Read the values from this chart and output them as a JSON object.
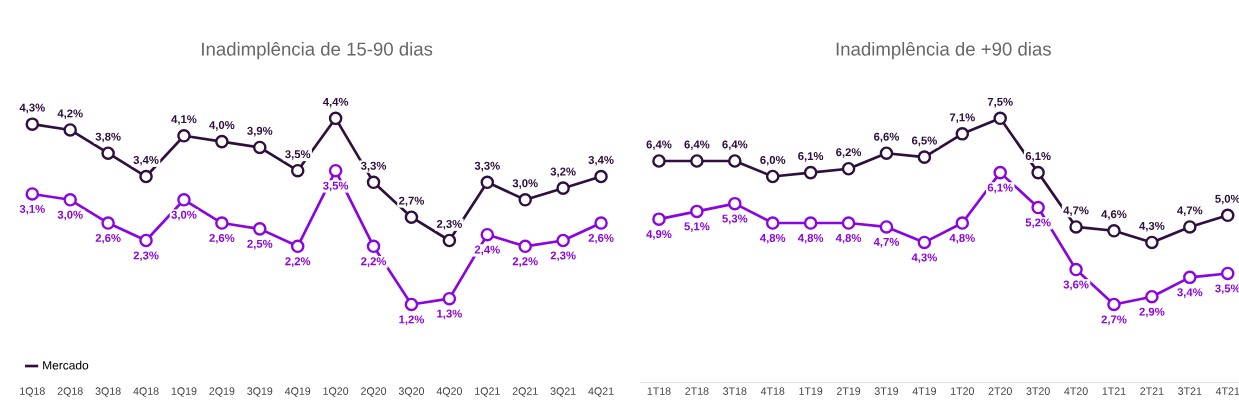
{
  "chart_data": [
    {
      "type": "line",
      "title": "Inadimplência de 15-90 dias",
      "categories": [
        "1Q18",
        "2Q18",
        "3Q18",
        "4Q18",
        "1Q19",
        "2Q19",
        "3Q19",
        "4Q19",
        "1Q20",
        "2Q20",
        "3Q20",
        "4Q20",
        "1Q21",
        "2Q21",
        "3Q21",
        "4Q21"
      ],
      "marker": "circle",
      "legend": "bottom left",
      "series": [
        {
          "name": "Mercado",
          "color": "#2e0f3d",
          "values": [
            4.3,
            4.2,
            3.8,
            3.4,
            4.1,
            4.0,
            3.9,
            3.5,
            4.4,
            3.3,
            2.7,
            2.3,
            3.3,
            3.0,
            3.2,
            3.4
          ],
          "value_labels": [
            "4,3%",
            "4,2%",
            "3,8%",
            "3,4%",
            "4,1%",
            "4,0%",
            "3,9%",
            "3,5%",
            "4,4%",
            "3,3%",
            "2,7%",
            "2,3%",
            "3,3%",
            "3,0%",
            "3,2%",
            "3,4%"
          ]
        },
        {
          "color": "#8a05e0",
          "values": [
            3.1,
            3.0,
            2.6,
            2.3,
            3.0,
            2.6,
            2.5,
            2.2,
            3.5,
            2.2,
            1.2,
            1.3,
            2.4,
            2.2,
            2.3,
            2.6
          ],
          "value_labels": [
            "3,1%",
            "3,0%",
            "2,6%",
            "2,3%",
            "3,0%",
            "2,6%",
            "2,5%",
            "2,2%",
            "3,5%",
            "2,2%",
            "1,2%",
            "1,3%",
            "2,4%",
            "2,2%",
            "2,3%",
            "2,6%"
          ]
        }
      ]
    },
    {
      "type": "line",
      "title": "Inadimplência de +90 dias",
      "categories": [
        "1T18",
        "2T18",
        "3T18",
        "4T18",
        "1T19",
        "2T19",
        "3T19",
        "4T19",
        "1T20",
        "2T20",
        "3T20",
        "4T20",
        "1T21",
        "2T21",
        "3T21",
        "4T21"
      ],
      "marker": "circle",
      "series": [
        {
          "color": "#2e0f3d",
          "values": [
            6.4,
            6.4,
            6.4,
            6.0,
            6.1,
            6.2,
            6.6,
            6.5,
            7.1,
            7.5,
            6.1,
            4.7,
            4.6,
            4.3,
            4.7,
            5.0
          ],
          "value_labels": [
            "6,4%",
            "6,4%",
            "6,4%",
            "6,0%",
            "6,1%",
            "6,2%",
            "6,6%",
            "6,5%",
            "7,1%",
            "7,5%",
            "6,1%",
            "4,7%",
            "4,6%",
            "4,3%",
            "4,7%",
            "5,0%"
          ]
        },
        {
          "color": "#8a05e0",
          "values": [
            4.9,
            5.1,
            5.3,
            4.8,
            4.8,
            4.8,
            4.7,
            4.3,
            4.8,
            6.1,
            5.2,
            3.6,
            2.7,
            2.9,
            3.4,
            3.5
          ],
          "value_labels": [
            "4,9%",
            "5,1%",
            "5,3%",
            "4,8%",
            "4,8%",
            "4,8%",
            "4,7%",
            "4,3%",
            "4,8%",
            "6,1%",
            "5,2%",
            "3,6%",
            "2,7%",
            "2,9%",
            "3,4%",
            "3,5%"
          ]
        }
      ]
    }
  ]
}
